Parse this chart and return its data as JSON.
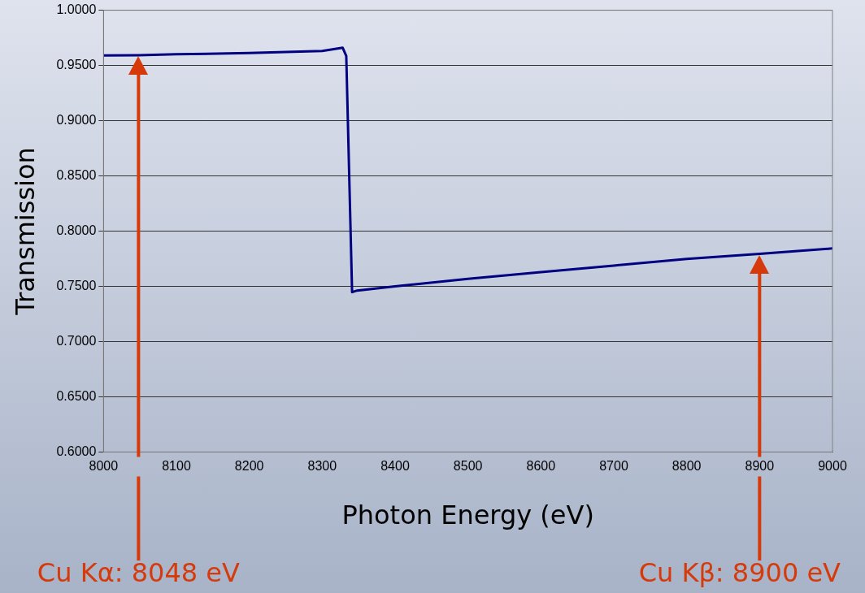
{
  "chart_data": {
    "type": "line",
    "xlabel": "Photon Energy (eV)",
    "ylabel": "Transmission",
    "x": [
      8000,
      8048,
      8100,
      8200,
      8300,
      8328,
      8333,
      8341,
      8348,
      8400,
      8500,
      8600,
      8700,
      8800,
      8900,
      9000
    ],
    "series": [
      {
        "color": "#000080",
        "values": [
          0.959,
          0.9592,
          0.9601,
          0.9613,
          0.9631,
          0.9661,
          0.9586,
          0.7447,
          0.7462,
          0.75,
          0.7568,
          0.7628,
          0.7688,
          0.7748,
          0.7794,
          0.7843
        ]
      }
    ],
    "xlim": [
      8000,
      9000
    ],
    "xticks": [
      8000,
      8100,
      8200,
      8300,
      8400,
      8500,
      8600,
      8700,
      8800,
      8900,
      9000
    ],
    "ylim": [
      0.6,
      1.0
    ],
    "yticks": [
      {
        "value": 0.6,
        "label": "0.6000"
      },
      {
        "value": 0.65,
        "label": "0.6500"
      },
      {
        "value": 0.7,
        "label": "0.7000"
      },
      {
        "value": 0.75,
        "label": "0.7500"
      },
      {
        "value": 0.8,
        "label": "0.8000"
      },
      {
        "value": 0.85,
        "label": "0.8500"
      },
      {
        "value": 0.9,
        "label": "0.9000"
      },
      {
        "value": 0.95,
        "label": "0.9500"
      },
      {
        "value": 1.0,
        "label": "1.0000"
      }
    ],
    "grid": "y",
    "legend": false,
    "marker": "none",
    "line_style": "solid",
    "ref_lines": [
      {
        "axis": "x",
        "value": 8048,
        "label": "Cu Kα: 8048 eV",
        "color": "#d63a0a",
        "line_style": "solid"
      },
      {
        "axis": "x",
        "value": 8900,
        "label": "Cu Kβ: 8900 eV",
        "color": "#d63a0a",
        "line_style": "solid"
      }
    ]
  }
}
